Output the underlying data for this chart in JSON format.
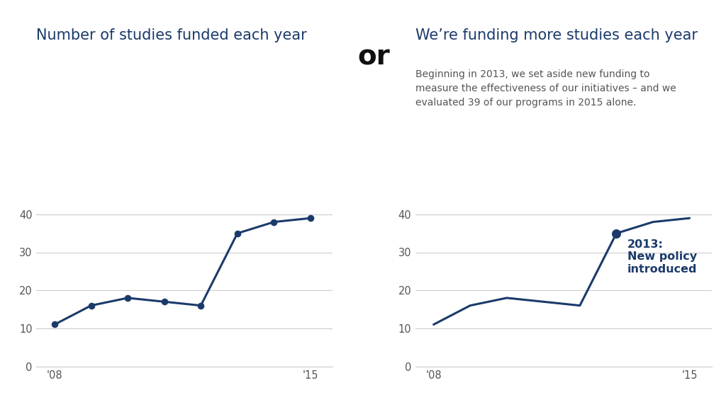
{
  "years": [
    2008,
    2009,
    2010,
    2011,
    2012,
    2013,
    2014,
    2015
  ],
  "values": [
    11,
    16,
    18,
    17,
    16,
    35,
    38,
    39
  ],
  "line_color": "#1b3a6b",
  "dot_color": "#1b3a6b",
  "title_left": "Number of studies funded each year",
  "title_right": "We’re funding more studies each year",
  "subtitle_right": "Beginning in 2013, we set aside new funding to\nmeasure the effectiveness of our initiatives – and we\nevaluated 39 of our programs in 2015 alone.",
  "annotation_year": 2013,
  "annotation_value": 35,
  "annotation_text": "2013:\nNew policy\nintroduced",
  "or_text": "or",
  "title_color": "#1b3a6b",
  "subtitle_color": "#555555",
  "annotation_color": "#1b3a6b",
  "or_color": "#111111",
  "background_color": "#ffffff",
  "ylim": [
    0,
    45
  ],
  "yticks": [
    0,
    10,
    20,
    30,
    40
  ],
  "xtick_labels": [
    "'08",
    "",
    "",
    "",
    "",
    "",
    "",
    "'15"
  ],
  "grid_color": "#cccccc",
  "title_fontsize": 15,
  "subtitle_fontsize": 10,
  "or_fontsize": 28,
  "tick_fontsize": 10.5,
  "annotation_fontsize": 11.5
}
